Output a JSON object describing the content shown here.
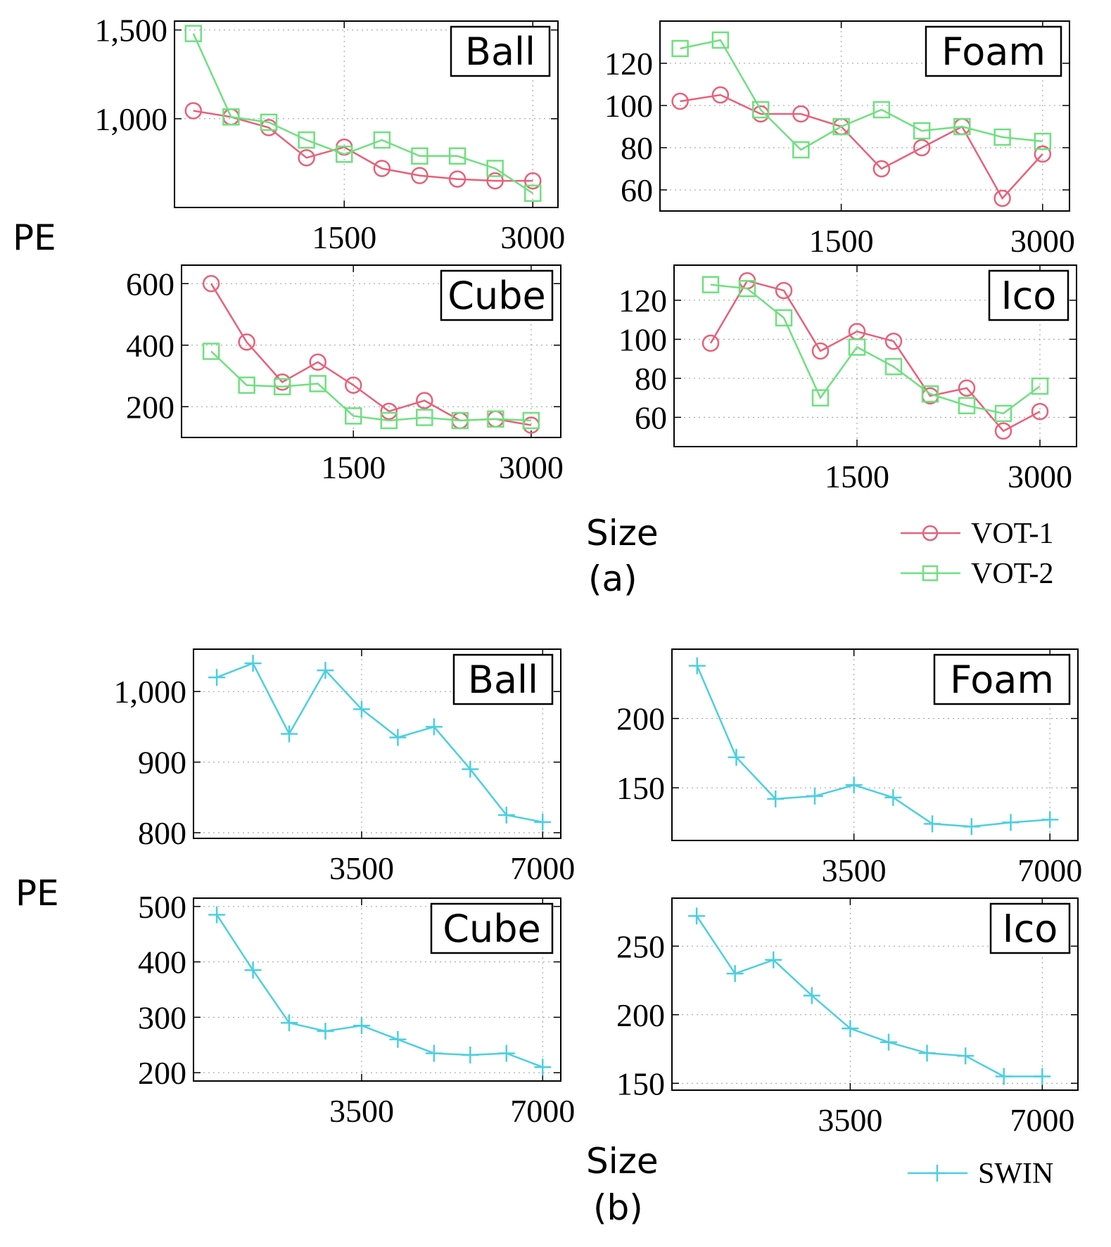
{
  "colors": {
    "vot1": "#e8607a",
    "vot2": "#6fe07f",
    "swin": "#4ccfe0",
    "axis": "#000000",
    "grid": "#9a9a9a"
  },
  "labels": {
    "pe_a": "PE",
    "size_a": "Size",
    "caption_a": "(a)",
    "pe_b": "PE",
    "size_b": "Size",
    "caption_b": "(b)"
  },
  "legend_a": {
    "vot1": "VOT-1",
    "vot2": "VOT-2"
  },
  "legend_b": {
    "swin": "SWIN"
  },
  "chart_data": [
    {
      "type": "line",
      "panel": "a",
      "title": "Ball",
      "xlabel": "Size",
      "ylabel": "PE",
      "x": [
        300,
        600,
        900,
        1200,
        1500,
        1800,
        2100,
        2400,
        2700,
        3000
      ],
      "xlim": [
        150,
        3200
      ],
      "ylim": [
        500,
        1550
      ],
      "xticks": [
        1500,
        3000
      ],
      "xtick_labels": [
        "1500",
        "3000"
      ],
      "yticks": [
        1000,
        1500
      ],
      "ytick_labels": [
        "1,000",
        "1,500"
      ],
      "series": [
        {
          "name": "VOT-1",
          "marker": "circle",
          "values": [
            1045,
            1010,
            950,
            780,
            840,
            720,
            680,
            660,
            650,
            650
          ]
        },
        {
          "name": "VOT-2",
          "marker": "square",
          "values": [
            1480,
            1010,
            980,
            880,
            800,
            880,
            790,
            790,
            720,
            580
          ]
        }
      ]
    },
    {
      "type": "line",
      "panel": "a",
      "title": "Foam",
      "xlabel": "Size",
      "ylabel": "PE",
      "x": [
        300,
        600,
        900,
        1200,
        1500,
        1800,
        2100,
        2400,
        2700,
        3000
      ],
      "xlim": [
        150,
        3200
      ],
      "ylim": [
        50,
        140
      ],
      "xticks": [
        1500,
        3000
      ],
      "xtick_labels": [
        "1500",
        "3000"
      ],
      "yticks": [
        60,
        80,
        100,
        120
      ],
      "ytick_labels": [
        "60",
        "80",
        "100",
        "120"
      ],
      "series": [
        {
          "name": "VOT-1",
          "marker": "circle",
          "values": [
            102,
            105,
            96,
            96,
            90,
            70,
            80,
            90,
            56,
            77
          ]
        },
        {
          "name": "VOT-2",
          "marker": "square",
          "values": [
            127,
            131,
            98,
            79,
            90,
            98,
            88,
            90,
            85,
            83
          ]
        }
      ]
    },
    {
      "type": "line",
      "panel": "a",
      "title": "Cube",
      "xlabel": "Size",
      "ylabel": "PE",
      "x": [
        300,
        600,
        900,
        1200,
        1500,
        1800,
        2100,
        2400,
        2700,
        3000
      ],
      "xlim": [
        50,
        3250
      ],
      "ylim": [
        100,
        660
      ],
      "xticks": [
        1500,
        3000
      ],
      "xtick_labels": [
        "1500",
        "3000"
      ],
      "yticks": [
        200,
        400,
        600
      ],
      "ytick_labels": [
        "200",
        "400",
        "600"
      ],
      "series": [
        {
          "name": "VOT-1",
          "marker": "circle",
          "values": [
            600,
            410,
            280,
            345,
            270,
            185,
            220,
            155,
            160,
            140
          ]
        },
        {
          "name": "VOT-2",
          "marker": "square",
          "values": [
            380,
            270,
            265,
            275,
            170,
            155,
            165,
            155,
            160,
            155
          ]
        }
      ]
    },
    {
      "type": "line",
      "panel": "a",
      "title": "Ico",
      "xlabel": "Size",
      "ylabel": "PE",
      "x": [
        300,
        600,
        900,
        1200,
        1500,
        1800,
        2100,
        2400,
        2700,
        3000
      ],
      "xlim": [
        0,
        3300
      ],
      "ylim": [
        45,
        138
      ],
      "xticks": [
        1500,
        3000
      ],
      "xtick_labels": [
        "1500",
        "3000"
      ],
      "yticks": [
        60,
        80,
        100,
        120
      ],
      "ytick_labels": [
        "60",
        "80",
        "100",
        "120"
      ],
      "series": [
        {
          "name": "VOT-1",
          "marker": "circle",
          "values": [
            98,
            130,
            125,
            94,
            104,
            99,
            71,
            75,
            53,
            63
          ]
        },
        {
          "name": "VOT-2",
          "marker": "square",
          "values": [
            128,
            126,
            111,
            70,
            96,
            86,
            72,
            66,
            62,
            76
          ]
        }
      ]
    },
    {
      "type": "line",
      "panel": "b",
      "title": "Ball",
      "xlabel": "Size",
      "ylabel": "PE",
      "x": [
        700,
        1400,
        2100,
        2800,
        3500,
        4200,
        4900,
        5600,
        6300,
        7000
      ],
      "xlim": [
        250,
        7350
      ],
      "ylim": [
        792,
        1060
      ],
      "xticks": [
        3500,
        7000
      ],
      "xtick_labels": [
        "3500",
        "7000"
      ],
      "yticks": [
        800,
        900,
        1000
      ],
      "ytick_labels": [
        "800",
        "900",
        "1,000"
      ],
      "series": [
        {
          "name": "SWIN",
          "marker": "plus",
          "values": [
            1020,
            1040,
            940,
            1030,
            975,
            935,
            950,
            890,
            825,
            815
          ]
        }
      ]
    },
    {
      "type": "line",
      "panel": "b",
      "title": "Foam",
      "xlabel": "Size",
      "ylabel": "PE",
      "x": [
        700,
        1400,
        2100,
        2800,
        3500,
        4200,
        4900,
        5600,
        6300,
        7000
      ],
      "xlim": [
        250,
        7500
      ],
      "ylim": [
        112,
        250
      ],
      "xticks": [
        3500,
        7000
      ],
      "xtick_labels": [
        "3500",
        "7000"
      ],
      "yticks": [
        150,
        200
      ],
      "ytick_labels": [
        "150",
        "200"
      ],
      "series": [
        {
          "name": "SWIN",
          "marker": "plus",
          "values": [
            238,
            172,
            142,
            144,
            152,
            143,
            124,
            122,
            125,
            127
          ]
        }
      ]
    },
    {
      "type": "line",
      "panel": "b",
      "title": "Cube",
      "xlabel": "Size",
      "ylabel": "PE",
      "x": [
        700,
        1400,
        2100,
        2800,
        3500,
        4200,
        4900,
        5600,
        6300,
        7000
      ],
      "xlim": [
        250,
        7350
      ],
      "ylim": [
        185,
        515
      ],
      "xticks": [
        3500,
        7000
      ],
      "xtick_labels": [
        "3500",
        "7000"
      ],
      "yticks": [
        200,
        300,
        400,
        500
      ],
      "ytick_labels": [
        "200",
        "300",
        "400",
        "500"
      ],
      "series": [
        {
          "name": "SWIN",
          "marker": "plus",
          "values": [
            485,
            385,
            290,
            275,
            285,
            260,
            235,
            232,
            235,
            210
          ]
        }
      ]
    },
    {
      "type": "line",
      "panel": "b",
      "title": "Ico",
      "xlabel": "Size",
      "ylabel": "PE",
      "x": [
        700,
        1400,
        2100,
        2800,
        3500,
        4200,
        4900,
        5600,
        6300,
        7000
      ],
      "xlim": [
        250,
        7650
      ],
      "ylim": [
        145,
        285
      ],
      "xticks": [
        3500,
        7000
      ],
      "xtick_labels": [
        "3500",
        "7000"
      ],
      "yticks": [
        150,
        200,
        250
      ],
      "ytick_labels": [
        "150",
        "200",
        "250"
      ],
      "series": [
        {
          "name": "SWIN",
          "marker": "plus",
          "values": [
            272,
            230,
            240,
            214,
            190,
            180,
            172,
            170,
            155,
            155
          ]
        }
      ]
    }
  ]
}
